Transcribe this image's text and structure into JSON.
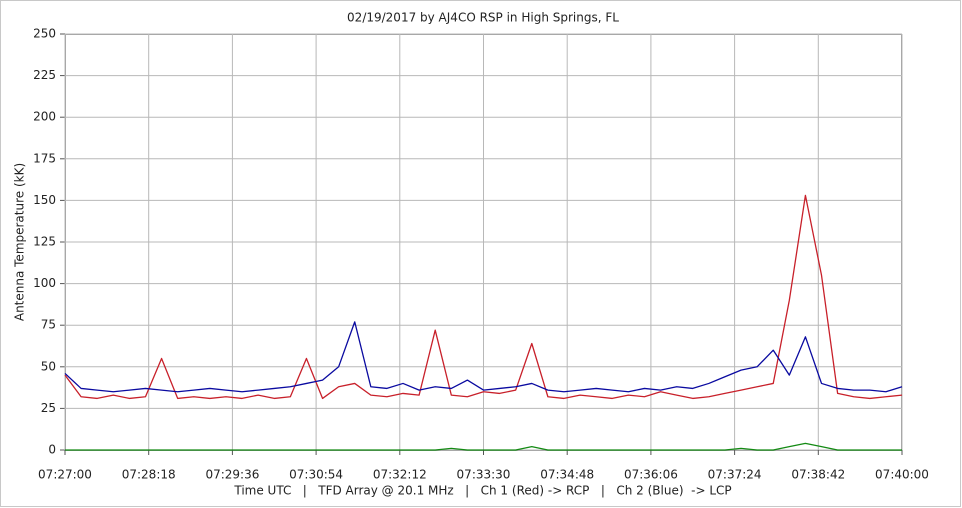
{
  "chart_data": {
    "type": "line",
    "title": "02/19/2017  by  AJ4CO RSP  in  High Springs, FL",
    "y_label": "Antenna Temperature (kK)",
    "x_label": "Time UTC   |   TFD Array @ 20.1 MHz   |   Ch 1 (Red) -> RCP   |   Ch 2 (Blue)  -> LCP",
    "x": [
      "07:27:00",
      "07:27:15",
      "07:27:30",
      "07:27:45",
      "07:28:00",
      "07:28:15",
      "07:28:30",
      "07:28:45",
      "07:29:00",
      "07:29:15",
      "07:29:30",
      "07:29:45",
      "07:30:00",
      "07:30:15",
      "07:30:30",
      "07:30:45",
      "07:31:00",
      "07:31:15",
      "07:31:30",
      "07:31:45",
      "07:32:00",
      "07:32:15",
      "07:32:30",
      "07:32:45",
      "07:33:00",
      "07:33:15",
      "07:33:30",
      "07:33:45",
      "07:34:00",
      "07:34:15",
      "07:34:30",
      "07:34:45",
      "07:35:00",
      "07:35:15",
      "07:35:30",
      "07:35:45",
      "07:36:00",
      "07:36:15",
      "07:36:30",
      "07:36:45",
      "07:37:00",
      "07:37:15",
      "07:37:30",
      "07:37:45",
      "07:38:00",
      "07:38:15",
      "07:38:30",
      "07:38:45",
      "07:39:00",
      "07:39:15",
      "07:39:30",
      "07:39:45",
      "07:40:00"
    ],
    "series": [
      {
        "color": "#c8202a",
        "values": [
          45,
          32,
          31,
          33,
          31,
          32,
          55,
          31,
          32,
          31,
          32,
          31,
          33,
          31,
          32,
          55,
          31,
          38,
          40,
          33,
          32,
          34,
          33,
          72,
          33,
          32,
          35,
          34,
          36,
          64,
          32,
          31,
          33,
          32,
          31,
          33,
          32,
          35,
          33,
          31,
          32,
          34,
          36,
          38,
          40,
          90,
          153,
          105,
          34,
          32,
          31,
          32,
          33
        ]
      },
      {
        "color": "#0a0aa0",
        "values": [
          46,
          37,
          36,
          35,
          36,
          37,
          36,
          35,
          36,
          37,
          36,
          35,
          36,
          37,
          38,
          40,
          42,
          50,
          77,
          38,
          37,
          40,
          36,
          38,
          37,
          42,
          36,
          37,
          38,
          40,
          36,
          35,
          36,
          37,
          36,
          35,
          37,
          36,
          38,
          37,
          40,
          44,
          48,
          50,
          60,
          45,
          68,
          40,
          37,
          36,
          36,
          35,
          38
        ]
      },
      {
        "color": "#138a13",
        "values": [
          0,
          0,
          0,
          0,
          0,
          0,
          0,
          0,
          0,
          0,
          0,
          0,
          0,
          0,
          0,
          0,
          0,
          0,
          0,
          0,
          0,
          0,
          0,
          0,
          1,
          0,
          0,
          0,
          0,
          2,
          0,
          0,
          0,
          0,
          0,
          0,
          0,
          0,
          0,
          0,
          0,
          0,
          1,
          0,
          0,
          2,
          4,
          2,
          0,
          0,
          0,
          0,
          0
        ]
      }
    ],
    "xlim": [
      "07:27:00",
      "07:40:00"
    ],
    "xticks": [
      "07:27:00",
      "07:28:18",
      "07:29:36",
      "07:30:54",
      "07:32:12",
      "07:33:30",
      "07:34:48",
      "07:36:06",
      "07:37:24",
      "07:38:42",
      "07:40:00"
    ],
    "ylim": [
      0,
      250
    ],
    "yticks": [
      0,
      25,
      50,
      75,
      100,
      125,
      150,
      175,
      200,
      225,
      250
    ],
    "grid": true
  }
}
